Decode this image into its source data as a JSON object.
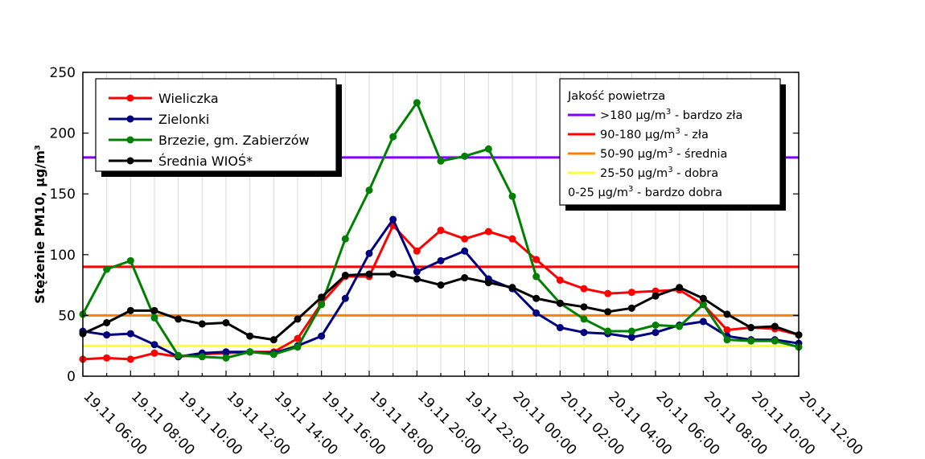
{
  "chart_data": {
    "type": "line",
    "title": "",
    "xlabel": "",
    "ylabel": "Stężenie PM10, µg/m³",
    "ylim": [
      0,
      250
    ],
    "yticks": [
      0,
      50,
      100,
      150,
      200,
      250
    ],
    "x_tick_labels": [
      "19.11 06:00",
      "19.11 08:00",
      "19.11 10:00",
      "19.11 12:00",
      "19.11 14:00",
      "19.11 16:00",
      "19.11 18:00",
      "19.11 20:00",
      "19.11 22:00",
      "20.11 00:00",
      "20.11 02:00",
      "20.11 04:00",
      "20.11 06:00",
      "20.11 08:00",
      "20.11 10:00",
      "20.11 12:00"
    ],
    "x": [
      "19.11 06:00",
      "19.11 07:00",
      "19.11 08:00",
      "19.11 09:00",
      "19.11 10:00",
      "19.11 11:00",
      "19.11 12:00",
      "19.11 13:00",
      "19.11 14:00",
      "19.11 15:00",
      "19.11 16:00",
      "19.11 17:00",
      "19.11 18:00",
      "19.11 19:00",
      "19.11 20:00",
      "19.11 21:00",
      "19.11 22:00",
      "19.11 23:00",
      "20.11 00:00",
      "20.11 01:00",
      "20.11 02:00",
      "20.11 03:00",
      "20.11 04:00",
      "20.11 05:00",
      "20.11 06:00",
      "20.11 07:00",
      "20.11 08:00",
      "20.11 09:00",
      "20.11 10:00",
      "20.11 11:00",
      "20.11 12:00"
    ],
    "grid": "vertical",
    "legend_placement": "top-left",
    "series": [
      {
        "name": "Wieliczka",
        "color": "#ff0000",
        "values": [
          14,
          15,
          14,
          19,
          16,
          18,
          19,
          20,
          20,
          31,
          60,
          82,
          82,
          124,
          103,
          120,
          113,
          119,
          113,
          96,
          79,
          72,
          68,
          69,
          70,
          71,
          59,
          38,
          40,
          39,
          34
        ]
      },
      {
        "name": "Zielonki",
        "color": "#00007f",
        "values": [
          37,
          34,
          35,
          26,
          16,
          19,
          20,
          20,
          19,
          25,
          33,
          64,
          101,
          129,
          86,
          95,
          103,
          80,
          72,
          52,
          40,
          36,
          35,
          32,
          36,
          42,
          45,
          33,
          30,
          30,
          27
        ]
      },
      {
        "name": "Brzezie, gm. Zabierzów",
        "color": "#008000",
        "values": [
          51,
          88,
          95,
          48,
          17,
          16,
          15,
          20,
          18,
          24,
          59,
          113,
          153,
          197,
          225,
          177,
          181,
          187,
          148,
          82,
          60,
          47,
          37,
          37,
          42,
          41,
          59,
          30,
          29,
          29,
          24
        ]
      },
      {
        "name": "Średnia WIOŚ*",
        "color": "#000000",
        "values": [
          35,
          44,
          54,
          54,
          47,
          43,
          44,
          33,
          30,
          47,
          65,
          83,
          84,
          84,
          80,
          75,
          81,
          77,
          73,
          64,
          60,
          57,
          53,
          56,
          66,
          73,
          64,
          51,
          40,
          41,
          34
        ]
      }
    ],
    "thresholds": [
      {
        "value": 180,
        "color": "#8000ff"
      },
      {
        "value": 90,
        "color": "#ff0000"
      },
      {
        "value": 50,
        "color": "#ff8000"
      },
      {
        "value": 25,
        "color": "#ffff33"
      }
    ]
  },
  "air_quality_legend": {
    "title": "Jakość powietrza",
    "entries": [
      {
        "color": "#8000ff",
        "value_text": ">180 µg/m",
        "label": " - bardzo zła"
      },
      {
        "color": "#ff0000",
        "value_text": "90-180 µg/m",
        "label": " - zła"
      },
      {
        "color": "#ff8000",
        "value_text": "50-90 µg/m",
        "label": " - średnia"
      },
      {
        "color": "#ffff33",
        "value_text": "25-50 µg/m",
        "label": " - dobra"
      },
      {
        "color": "",
        "value_text": "0-25 µg/m",
        "label": " - bardzo dobra"
      }
    ],
    "unit_exponent": "3"
  }
}
